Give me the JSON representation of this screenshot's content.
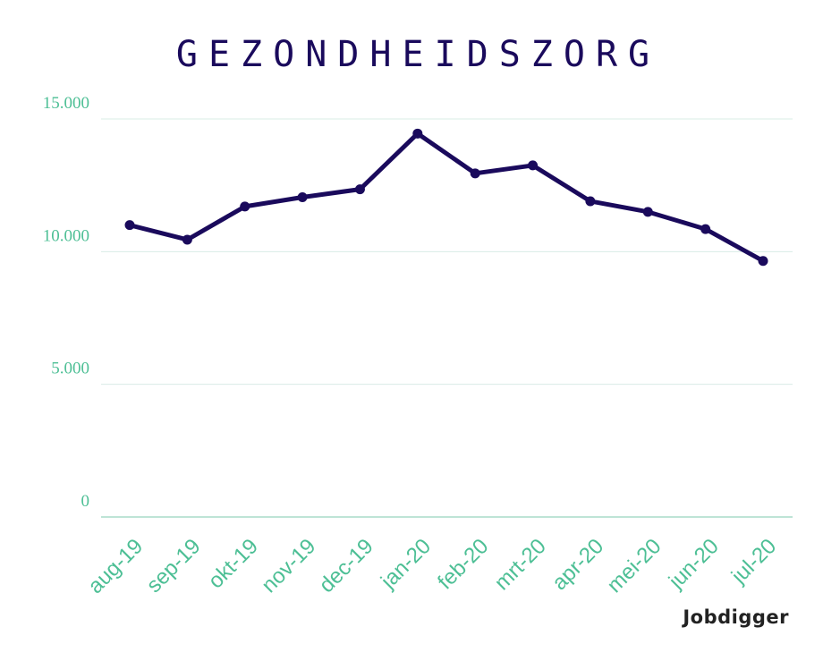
{
  "colors": {
    "line": "#1a0a5c",
    "axis_text": "#4dbf95",
    "grid": "#d9ece6",
    "baseline": "#a8dcc8"
  },
  "brand": {
    "logo_text": "Jobdigger"
  },
  "chart_data": {
    "type": "line",
    "title": "GEZONDHEIDSZORG",
    "xlabel": "",
    "ylabel": "",
    "categories": [
      "aug-19",
      "sep-19",
      "okt-19",
      "nov-19",
      "dec-19",
      "jan-20",
      "feb-20",
      "mrt-20",
      "apr-20",
      "mei-20",
      "jun-20",
      "jul-20"
    ],
    "values": [
      11000,
      10450,
      11700,
      12050,
      12350,
      14450,
      12950,
      13250,
      11900,
      11500,
      10850,
      9650
    ],
    "ylim": [
      0,
      15000
    ],
    "yticks": [
      0,
      5000,
      10000,
      15000
    ],
    "ytick_labels": [
      "0",
      "5.000",
      "10.000",
      "15.000"
    ],
    "grid": true,
    "legend": "none"
  }
}
